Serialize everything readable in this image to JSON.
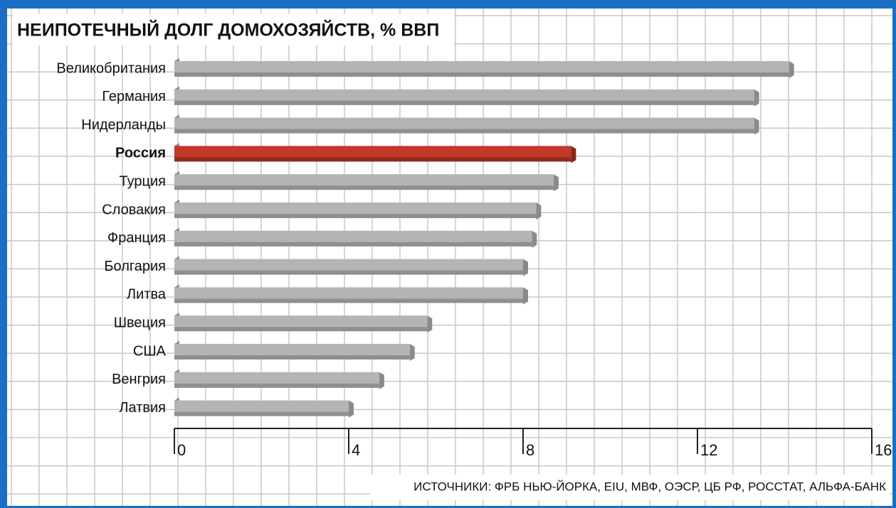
{
  "chart_data": {
    "type": "bar",
    "orientation": "horizontal",
    "title": "НЕИПОТЕЧНЫЙ ДОЛГ ДОМОХОЗЯЙСТВ, % ВВП",
    "source": "ИСТОЧНИКИ: ФРБ НЬЮ-ЙОРКА, EIU, МВФ, ОЭСР, ЦБ РФ, РОССТАТ, АЛЬФА-БАНК",
    "categories": [
      "Великобритания",
      "Германия",
      "Нидерланды",
      "Россия",
      "Турция",
      "Словакия",
      "Франция",
      "Болгария",
      "Литва",
      "Швеция",
      "США",
      "Венгрия",
      "Латвия"
    ],
    "values": [
      14.1,
      13.3,
      13.3,
      9.1,
      8.7,
      8.3,
      8.2,
      8.0,
      8.0,
      5.8,
      5.4,
      4.7,
      4.0
    ],
    "colors": [
      "#b4b4b4",
      "#b4b4b4",
      "#b4b4b4",
      "#c0392b",
      "#b4b4b4",
      "#b4b4b4",
      "#b4b4b4",
      "#b4b4b4",
      "#b4b4b4",
      "#b4b4b4",
      "#b4b4b4",
      "#b4b4b4",
      "#b4b4b4"
    ],
    "xlim": [
      0,
      16
    ],
    "xticks": [
      0,
      4,
      8,
      12,
      16
    ],
    "grid": true
  }
}
